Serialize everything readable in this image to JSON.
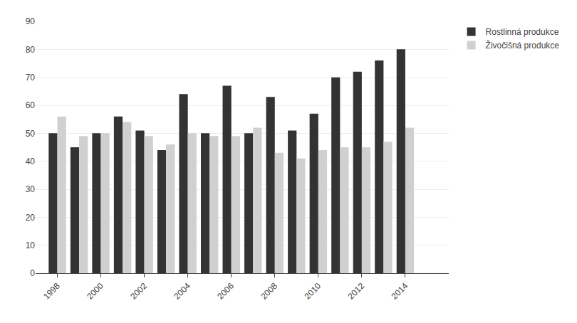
{
  "chart_data": {
    "type": "bar",
    "x": [
      1998,
      1999,
      2000,
      2001,
      2002,
      2003,
      2004,
      2005,
      2006,
      2007,
      2008,
      2009,
      2010,
      2011,
      2012,
      2013,
      2014,
      2015
    ],
    "series": [
      {
        "name": "Rostlinná produkce",
        "color": "#333333",
        "values": [
          50,
          45,
          50,
          56,
          51,
          44,
          64,
          50,
          67,
          50,
          63,
          51,
          57,
          70,
          72,
          76,
          80,
          null
        ]
      },
      {
        "name": "Živočišná produkce",
        "color": "#d0d0d0",
        "values": [
          56,
          49,
          50,
          54,
          49,
          46,
          50,
          49,
          49,
          52,
          43,
          41,
          44,
          45,
          45,
          47,
          52,
          null
        ]
      }
    ],
    "xlim": [
      1997,
      2016
    ],
    "xticks": [
      1998,
      2000,
      2002,
      2004,
      2006,
      2008,
      2010,
      2012,
      2014
    ],
    "ylim": [
      0,
      90
    ],
    "yticks": [
      0,
      10,
      20,
      30,
      40,
      50,
      60,
      70,
      80,
      90
    ],
    "grid": true,
    "legend": "upper right"
  }
}
